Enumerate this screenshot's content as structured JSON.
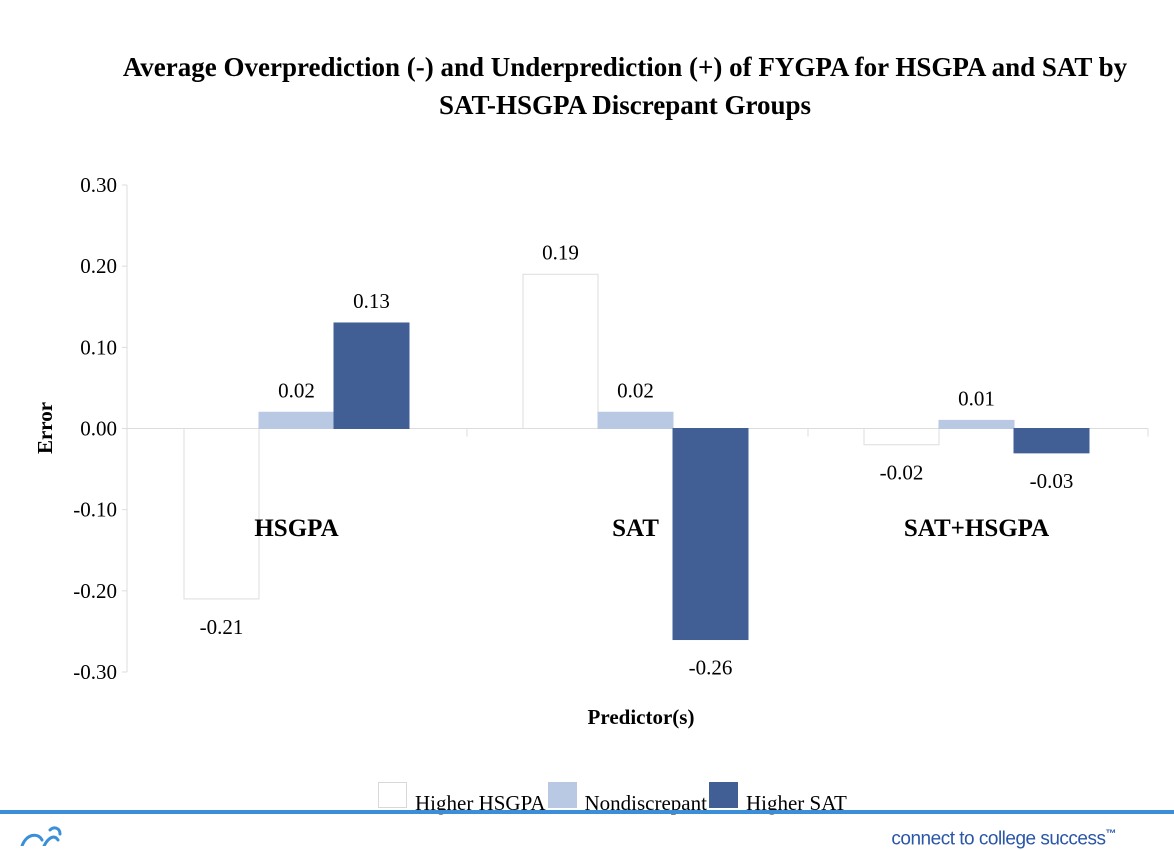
{
  "chart_data": {
    "type": "bar",
    "title": "Average Overprediction (-) and Underprediction (+) of FYGPA for HSGPA and SAT by SAT-HSGPA Discrepant Groups",
    "xlabel": "Predictor(s)",
    "ylabel": "Error",
    "ylim": [
      -0.3,
      0.3
    ],
    "yticks": [
      "0.30",
      "0.20",
      "0.10",
      "0.00",
      "-0.10",
      "-0.20",
      "-0.30"
    ],
    "ytick_values": [
      0.3,
      0.2,
      0.1,
      0.0,
      -0.1,
      -0.2,
      -0.3
    ],
    "categories": [
      "HSGPA",
      "SAT",
      "SAT+HSGPA"
    ],
    "series": [
      {
        "name": "Higher HSGPA",
        "values": [
          -0.21,
          0.19,
          -0.02
        ],
        "labels": [
          "-0.21",
          "0.19",
          "-0.02"
        ],
        "color": "#ffffff"
      },
      {
        "name": "Nondiscrepant",
        "values": [
          0.02,
          0.02,
          0.01
        ],
        "labels": [
          "0.02",
          "0.02",
          "0.01"
        ],
        "color": "#b9c9e4"
      },
      {
        "name": "Higher SAT",
        "values": [
          0.13,
          -0.26,
          -0.03
        ],
        "labels": [
          "0.13",
          "-0.26",
          "-0.03"
        ],
        "color": "#415f94"
      }
    ],
    "grid": false,
    "legend_position": "bottom"
  },
  "footer": {
    "tagline": "connect to college success",
    "trademark": "™",
    "bar_color": "#3a8fd8",
    "logo_icon": "acorn-logo-icon"
  }
}
